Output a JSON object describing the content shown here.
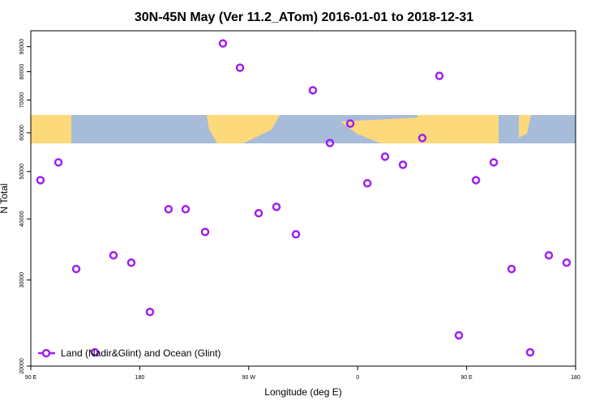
{
  "chart_data": {
    "type": "scatter",
    "title": "30N-45N May (Ver 11.2_ATom)   2016-01-01 to 2018-12-31",
    "x_label": "Longitude (deg E)",
    "y_label": "N Total",
    "xlim": [
      90,
      540
    ],
    "ylim": [
      20000,
      97000
    ],
    "ylog": true,
    "xticks": [
      {
        "value": 90,
        "label": "90 E"
      },
      {
        "value": 180,
        "label": "180"
      },
      {
        "value": 270,
        "label": "90 W"
      },
      {
        "value": 360,
        "label": "0"
      },
      {
        "value": 450,
        "label": "90 E"
      },
      {
        "value": 540,
        "label": "180"
      }
    ],
    "yticks": [
      20000,
      30000,
      40000,
      50000,
      60000,
      70000,
      80000,
      90000
    ],
    "legend": "bottom-left",
    "series": [
      {
        "name": "Land (Nadir&Glint) and Ocean (Glint)",
        "color": "#a020f0",
        "x": [
          98,
          112.8,
          127.5,
          142.9,
          158.3,
          173,
          188.4,
          203.8,
          217.9,
          234,
          248.7,
          262.8,
          278.2,
          292.9,
          309,
          323,
          337.1,
          353.9,
          368,
          382.6,
          397.4,
          413.4,
          427.5,
          443.6,
          457.7,
          472.4,
          487.1,
          502.5,
          517.9,
          532.6
        ],
        "values": [
          48000,
          52200,
          31600,
          21340,
          33700,
          32550,
          25810,
          41870,
          41870,
          37620,
          91400,
          81520,
          41090,
          42340,
          37200,
          73300,
          57200,
          62670,
          47300,
          53620,
          51620,
          58540,
          78460,
          23120,
          48000,
          52200,
          31600,
          21340,
          33700,
          32550
        ]
      }
    ]
  }
}
